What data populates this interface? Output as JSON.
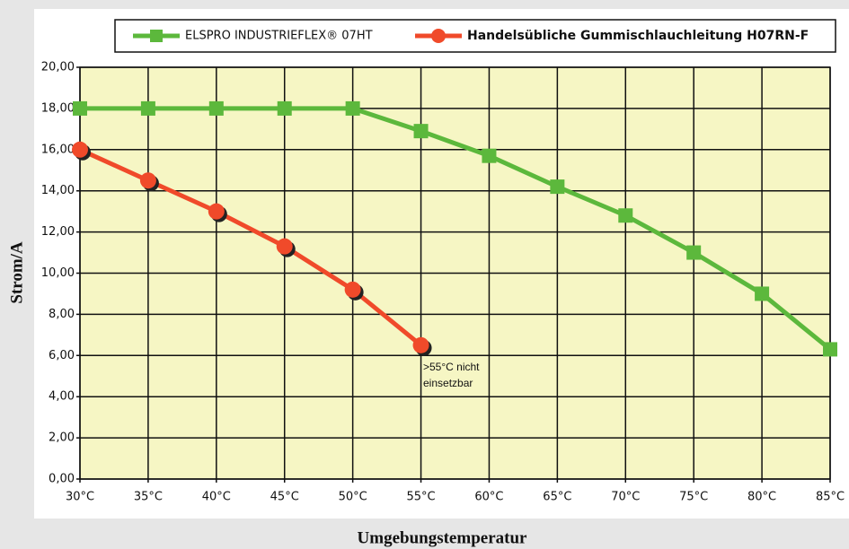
{
  "chart_data": {
    "type": "line",
    "categories": [
      "30°C",
      "35°C",
      "40°C",
      "45°C",
      "50°C",
      "55°C",
      "60°C",
      "65°C",
      "70°C",
      "75°C",
      "80°C",
      "85°C"
    ],
    "series": [
      {
        "name": "ELSPRO INDUSTRIEFLEX® 07HT",
        "color": "#5cb83c",
        "marker": "square",
        "values": [
          18,
          18,
          18,
          18,
          18,
          16.9,
          15.7,
          14.2,
          12.8,
          11,
          9,
          6.3
        ]
      },
      {
        "name": "Handelsübliche Gummischlauchleitung H07RN-F",
        "color": "#f04a2a",
        "marker": "circle",
        "values": [
          16,
          14.5,
          13,
          11.3,
          9.2,
          6.5,
          null,
          null,
          null,
          null,
          null,
          null
        ]
      }
    ],
    "ylim": [
      0,
      20
    ],
    "yticks": [
      {
        "value": 0,
        "label": "0,00"
      },
      {
        "value": 2,
        "label": "2,00"
      },
      {
        "value": 4,
        "label": "4,00"
      },
      {
        "value": 6,
        "label": "6,00"
      },
      {
        "value": 8,
        "label": "8,00"
      },
      {
        "value": 10,
        "label": "10,00"
      },
      {
        "value": 12,
        "label": "12,00"
      },
      {
        "value": 14,
        "label": "14,00"
      },
      {
        "value": 16,
        "label": "16,00"
      },
      {
        "value": 18,
        "label": "18,00"
      },
      {
        "value": 20,
        "label": "20,00"
      }
    ],
    "ylabel": "Strom/A",
    "xlabel": "Umgebungstemperatur",
    "annotation": [
      ">55°C nicht",
      "einsetzbar"
    ],
    "grid": true,
    "legend": "top"
  }
}
